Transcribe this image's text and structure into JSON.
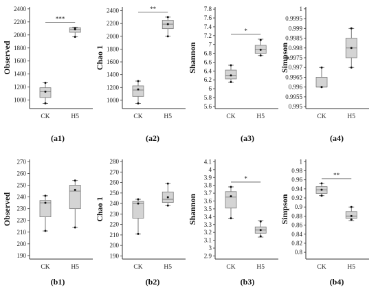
{
  "chart_data": [
    {
      "type": "box",
      "panel": "(a1)",
      "ylabel": "Observed",
      "ylim": [
        870,
        2430
      ],
      "yticks": [
        1000,
        1200,
        1400,
        1600,
        1800,
        2000,
        2200,
        2400
      ],
      "categories": [
        "CK",
        "H5"
      ],
      "boxes": [
        {
          "min": 950,
          "q1": 1040,
          "median": 1130,
          "q3": 1190,
          "max": 1265,
          "points": [
            950,
            1130,
            1265
          ]
        },
        {
          "min": 1970,
          "q1": 2040,
          "median": 2085,
          "q3": 2110,
          "max": 2120,
          "points": [
            1970,
            2085,
            2100
          ]
        }
      ],
      "significance": "***"
    },
    {
      "type": "box",
      "panel": "(a2)",
      "ylabel": "Chao 1",
      "ylim": [
        870,
        2460
      ],
      "yticks": [
        1000,
        1200,
        1400,
        1600,
        1800,
        2000,
        2200,
        2400
      ],
      "categories": [
        "CK",
        "H5"
      ],
      "boxes": [
        {
          "min": 950,
          "q1": 1060,
          "median": 1160,
          "q3": 1225,
          "max": 1300,
          "points": [
            950,
            1170,
            1300
          ]
        },
        {
          "min": 2000,
          "q1": 2120,
          "median": 2190,
          "q3": 2250,
          "max": 2300,
          "points": [
            2000,
            2190,
            2300
          ]
        }
      ],
      "significance": "**"
    },
    {
      "type": "box",
      "panel": "(a3)",
      "ylabel": "Shannon",
      "ylim": [
        5.55,
        7.85
      ],
      "yticks": [
        5.6,
        5.8,
        6,
        6.2,
        6.4,
        6.6,
        6.8,
        7,
        7.2,
        7.4,
        7.6,
        7.8
      ],
      "categories": [
        "CK",
        "H5"
      ],
      "boxes": [
        {
          "min": 6.15,
          "q1": 6.22,
          "median": 6.3,
          "q3": 6.42,
          "max": 6.53,
          "points": [
            6.15,
            6.3,
            6.53
          ]
        },
        {
          "min": 6.75,
          "q1": 6.8,
          "median": 6.88,
          "q3": 6.98,
          "max": 7.12,
          "points": [
            6.75,
            6.88,
            7.1
          ]
        }
      ],
      "significance": "*"
    },
    {
      "type": "box",
      "panel": "(a4)",
      "ylabel": "Simpson",
      "ylim": [
        0.9949,
        1.0001
      ],
      "yticks": [
        0.995,
        0.9955,
        0.996,
        0.9965,
        0.997,
        0.9975,
        0.998,
        0.9985,
        0.999,
        0.9995,
        1
      ],
      "categories": [
        "CK",
        "H5"
      ],
      "boxes": [
        {
          "min": 0.996,
          "q1": 0.996,
          "median": 0.996,
          "q3": 0.9965,
          "max": 0.997,
          "points": [
            0.996,
            0.996,
            0.997
          ]
        },
        {
          "min": 0.997,
          "q1": 0.9975,
          "median": 0.998,
          "q3": 0.9985,
          "max": 0.999,
          "points": [
            0.997,
            0.998,
            0.999
          ]
        }
      ],
      "significance": ""
    },
    {
      "type": "box",
      "panel": "(b1)",
      "ylabel": "Observed",
      "ylim": [
        187,
        272
      ],
      "yticks": [
        190,
        200,
        210,
        220,
        230,
        240,
        250,
        260,
        270
      ],
      "categories": [
        "CK",
        "H5"
      ],
      "boxes": [
        {
          "min": 211,
          "q1": 223,
          "median": 235,
          "q3": 237,
          "max": 241,
          "points": [
            211,
            235,
            241
          ]
        },
        {
          "min": 214,
          "q1": 230,
          "median": 245,
          "q3": 250,
          "max": 254,
          "points": [
            214,
            246,
            254
          ]
        }
      ],
      "significance": ""
    },
    {
      "type": "box",
      "panel": "(b2)",
      "ylabel": "Chao 1",
      "ylim": [
        187,
        282
      ],
      "yticks": [
        190,
        200,
        210,
        220,
        230,
        240,
        250,
        260,
        270,
        280
      ],
      "categories": [
        "CK",
        "H5"
      ],
      "boxes": [
        {
          "min": 211,
          "q1": 226,
          "median": 240,
          "q3": 242,
          "max": 244,
          "points": [
            211,
            240,
            244
          ]
        },
        {
          "min": 238,
          "q1": 241,
          "median": 244,
          "q3": 251,
          "max": 259,
          "points": [
            238,
            246,
            259
          ]
        }
      ],
      "significance": ""
    },
    {
      "type": "box",
      "panel": "(b3)",
      "ylabel": "Shannon",
      "ylim": [
        2.86,
        4.13
      ],
      "yticks": [
        2.9,
        3,
        3.1,
        3.2,
        3.3,
        3.4,
        3.5,
        3.6,
        3.7,
        3.8,
        3.9,
        4,
        4.1
      ],
      "categories": [
        "CK",
        "H5"
      ],
      "boxes": [
        {
          "min": 3.38,
          "q1": 3.51,
          "median": 3.65,
          "q3": 3.72,
          "max": 3.78,
          "points": [
            3.38,
            3.66,
            3.78
          ]
        },
        {
          "min": 3.14,
          "q1": 3.19,
          "median": 3.23,
          "q3": 3.27,
          "max": 3.35,
          "points": [
            3.15,
            3.23,
            3.34
          ]
        }
      ],
      "significance": "*"
    },
    {
      "type": "box",
      "panel": "(b4)",
      "ylabel": "Simpson",
      "ylim": [
        0.785,
        1.005
      ],
      "yticks": [
        0.8,
        0.82,
        0.84,
        0.86,
        0.88,
        0.9,
        0.92,
        0.94,
        0.96,
        0.98,
        1
      ],
      "categories": [
        "CK",
        "H5"
      ],
      "boxes": [
        {
          "min": 0.925,
          "q1": 0.93,
          "median": 0.938,
          "q3": 0.945,
          "max": 0.952,
          "points": [
            0.925,
            0.938,
            0.952
          ]
        },
        {
          "min": 0.87,
          "q1": 0.875,
          "median": 0.88,
          "q3": 0.89,
          "max": 0.9,
          "points": [
            0.872,
            0.88,
            0.9
          ]
        }
      ],
      "significance": "**"
    }
  ],
  "colors": {
    "box_fill": "#d4d4d4",
    "box_stroke": "#7a7a7a",
    "whisker": "#555555",
    "point": "#111111",
    "axis": "#333333"
  }
}
